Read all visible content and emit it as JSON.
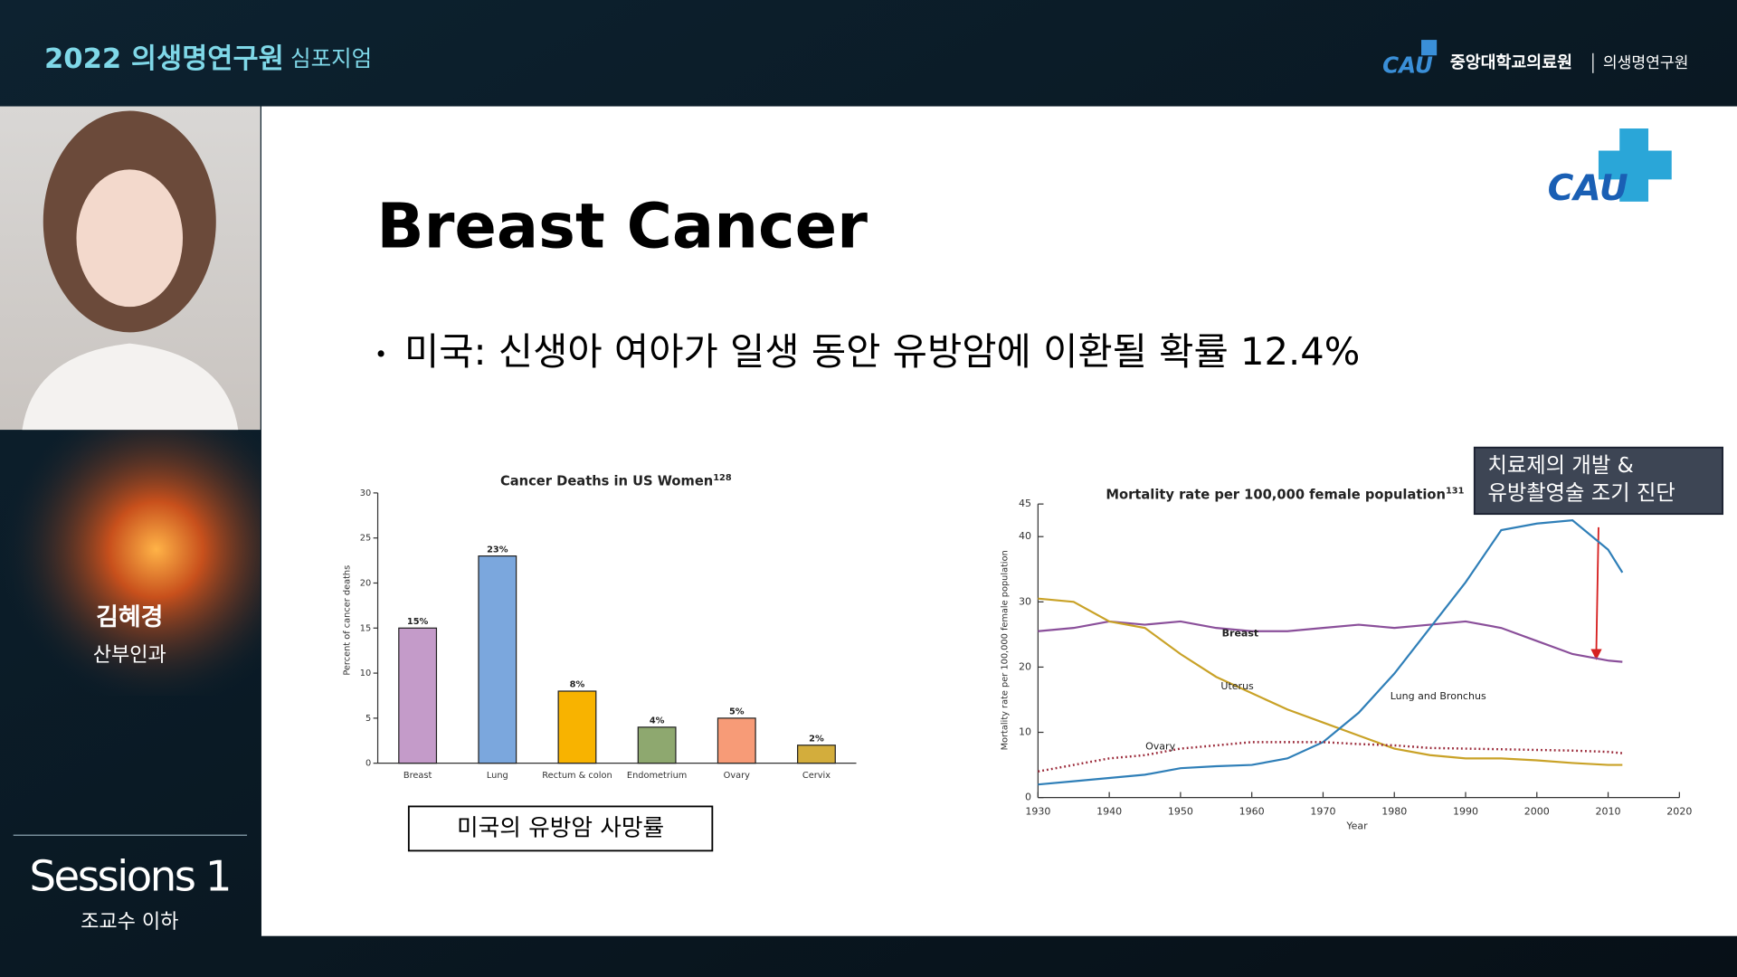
{
  "header": {
    "title": "2022 의생명연구원",
    "subtitle": "심포지엄",
    "org": "중앙대학교의료원",
    "dept": "의생명연구원",
    "logo": "CAU"
  },
  "speaker": {
    "name": "김혜경",
    "department": "산부인과",
    "session": "Sessions 1",
    "role": "조교수 이하"
  },
  "slide": {
    "logo": "CAU",
    "title": "Breast Cancer",
    "bullet": "미국: 신생아 여아가 일생 동안 유방암에 이환될 확률 12.4%",
    "caption": "미국의 유방암 사망률",
    "annotation": [
      "치료제의 개발 &",
      "유방촬영술 조기 진단"
    ]
  },
  "chart_data": [
    {
      "type": "bar",
      "title": "Cancer Deaths in US Women",
      "title_ref": "128",
      "ylabel": "Percent of cancer deaths",
      "categories": [
        "Breast",
        "Lung",
        "Rectum & colon",
        "Endometrium",
        "Ovary",
        "Cervix"
      ],
      "values": [
        15,
        23,
        8,
        4,
        5,
        2
      ],
      "value_labels": [
        "15%",
        "23%",
        "8%",
        "4%",
        "5%",
        "2%"
      ],
      "colors": [
        "#c49bc9",
        "#7ba7dd",
        "#f8b300",
        "#8ea86f",
        "#f79b77",
        "#d3ad3c"
      ],
      "ylim": [
        0,
        30
      ],
      "yticks": [
        0,
        5,
        10,
        15,
        20,
        25,
        30
      ]
    },
    {
      "type": "line",
      "title": "Mortality rate per 100,000 female population",
      "title_ref": "131",
      "ylabel": "Mortality rate per 100,000 female population",
      "xlabel": "Year",
      "x": [
        1930,
        1935,
        1940,
        1945,
        1950,
        1955,
        1960,
        1965,
        1970,
        1975,
        1980,
        1985,
        1990,
        1995,
        2000,
        2005,
        2010,
        2012
      ],
      "xlim": [
        1930,
        2020
      ],
      "xticks": [
        1930,
        1940,
        1950,
        1960,
        1970,
        1980,
        1990,
        2000,
        2010,
        2020
      ],
      "ylim": [
        0,
        45
      ],
      "yticks": [
        0,
        10,
        20,
        30,
        40,
        45
      ],
      "series": [
        {
          "name": "Breast",
          "color": "#8a4f9a",
          "style": "solid",
          "values": [
            25.5,
            26,
            27,
            26.5,
            27,
            26,
            25.5,
            25.5,
            26,
            26.5,
            26,
            26.5,
            27,
            26,
            24,
            22,
            21,
            20.8
          ]
        },
        {
          "name": "Uterus",
          "color": "#c9a227",
          "style": "solid",
          "values": [
            30.5,
            30,
            27,
            26,
            22,
            18.5,
            16,
            13.5,
            11.5,
            9.5,
            7.5,
            6.5,
            6,
            6,
            5.7,
            5.3,
            5,
            5
          ]
        },
        {
          "name": "Lung and Bronchus",
          "color": "#2f7fb8",
          "style": "solid",
          "values": [
            2,
            2.5,
            3,
            3.5,
            4.5,
            4.8,
            5,
            6,
            8.5,
            13,
            19,
            26,
            33,
            41,
            42,
            42.5,
            38,
            34.5
          ]
        },
        {
          "name": "Ovary",
          "color": "#9a2838",
          "style": "dotted",
          "values": [
            4,
            5,
            6,
            6.5,
            7.5,
            8,
            8.5,
            8.5,
            8.5,
            8.2,
            8,
            7.6,
            7.5,
            7.4,
            7.3,
            7.2,
            7,
            6.8
          ]
        }
      ]
    }
  ]
}
